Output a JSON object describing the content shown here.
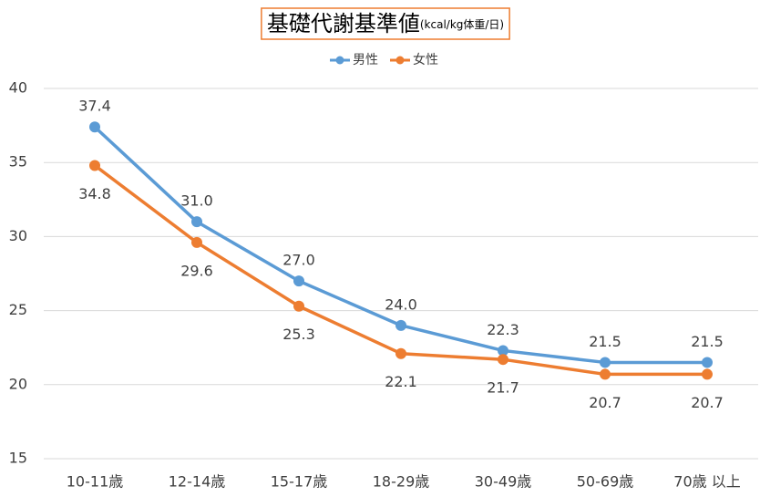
{
  "chart_data": {
    "type": "line",
    "title": "基礎代謝基準値",
    "subtitle": "(kcal/kg体重/日)",
    "categories": [
      "10-11歳",
      "12-14歳",
      "15-17歳",
      "18-29歳",
      "30-49歳",
      "50-69歳",
      "70歳 以上"
    ],
    "series": [
      {
        "name": "男性",
        "color": "#5b9bd5",
        "values": [
          37.4,
          31,
          27,
          24,
          22.3,
          21.5,
          21.5
        ],
        "value_labels": [
          "37.4",
          "31.0",
          "27.0",
          "24.0",
          "22.3",
          "21.5",
          "21.5"
        ]
      },
      {
        "name": "女性",
        "color": "#ed7d31",
        "values": [
          34.8,
          29.6,
          25.3,
          22.1,
          21.7,
          20.7,
          20.7
        ],
        "value_labels": [
          "34.8",
          "29.6",
          "25.3",
          "22.1",
          "21.7",
          "20.7",
          "20.7"
        ]
      }
    ],
    "ylim": [
      15,
      40
    ],
    "yticks": [
      15,
      20,
      25,
      30,
      35,
      40
    ],
    "grid": true,
    "legend": "top"
  }
}
